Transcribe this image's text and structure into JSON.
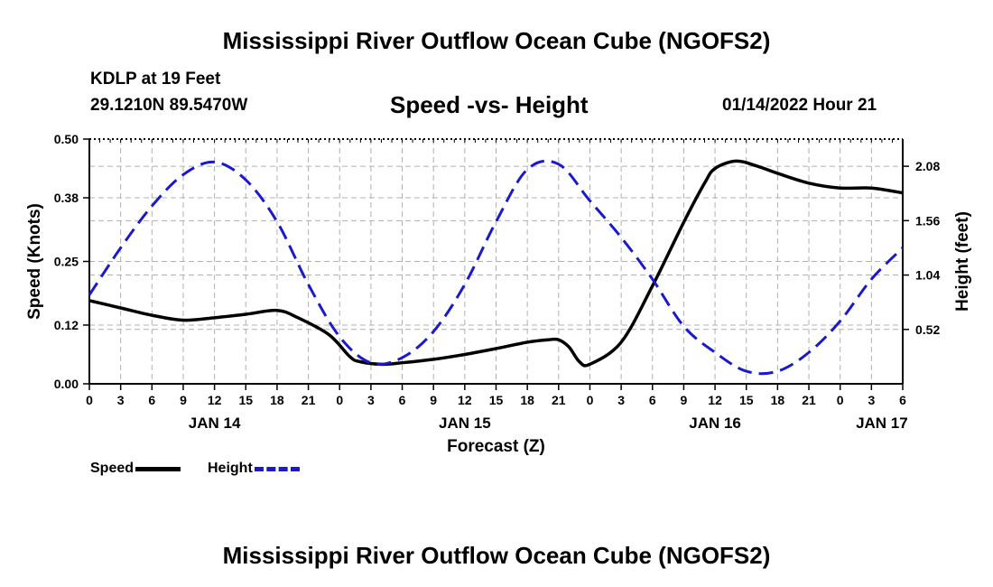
{
  "header": {
    "title": "Mississippi River Outflow Ocean Cube (NGOFS2)",
    "station": "KDLP at 19 Feet",
    "coords": "29.1210N  89.5470W",
    "subtitle": "Speed -vs- Height",
    "datetime": "01/14/2022 Hour 21"
  },
  "footer": {
    "title": "Mississippi River Outflow Ocean Cube (NGOFS2)"
  },
  "legend": {
    "speed_label": "Speed",
    "height_label": "Height"
  },
  "colors": {
    "speed": "#000000",
    "height": "#1a1acc",
    "grid": "#b0b0b0"
  },
  "chart_data": {
    "type": "line",
    "title": "Speed -vs- Height",
    "xlabel": "Forecast (Z)",
    "ylabel": "Speed (Knots)",
    "y2label": "Height (feet)",
    "xlim": [
      0,
      78
    ],
    "ylim": [
      0,
      0.5
    ],
    "y2lim": [
      0.0,
      2.34
    ],
    "x_ticks": [
      0,
      3,
      6,
      9,
      12,
      15,
      18,
      21,
      24,
      27,
      30,
      33,
      36,
      39,
      42,
      45,
      48,
      51,
      54,
      57,
      60,
      63,
      66,
      69,
      72,
      75,
      78
    ],
    "x_tick_labels": [
      "0",
      "3",
      "6",
      "9",
      "12",
      "15",
      "18",
      "21",
      "0",
      "3",
      "6",
      "9",
      "12",
      "15",
      "18",
      "21",
      "0",
      "3",
      "6",
      "9",
      "12",
      "15",
      "18",
      "21",
      "0",
      "3",
      "6"
    ],
    "day_labels": [
      {
        "x": 12,
        "label": "JAN 14"
      },
      {
        "x": 36,
        "label": "JAN 15"
      },
      {
        "x": 60,
        "label": "JAN 16"
      },
      {
        "x": 76,
        "label": "JAN 17"
      }
    ],
    "y_ticks": [
      0.0,
      0.12,
      0.25,
      0.38,
      0.5
    ],
    "y_tick_labels": [
      "0.00",
      "0.12",
      "0.25",
      "0.38",
      "0.50"
    ],
    "y2_ticks": [
      0.52,
      1.04,
      1.56,
      2.08
    ],
    "y2_tick_labels": [
      "0.52",
      "1.04",
      "1.56",
      "2.08"
    ],
    "grid": true,
    "series": [
      {
        "name": "Speed",
        "axis": "left",
        "style": "solid",
        "x": [
          0,
          3,
          6,
          9,
          12,
          15,
          18,
          20,
          23,
          25,
          26,
          28,
          30,
          33,
          36,
          39,
          42,
          44,
          45,
          46,
          47,
          48,
          51,
          54,
          57,
          59,
          60,
          62,
          64,
          66,
          69,
          72,
          75,
          78
        ],
        "values": [
          0.17,
          0.155,
          0.14,
          0.13,
          0.135,
          0.142,
          0.15,
          0.135,
          0.1,
          0.055,
          0.045,
          0.04,
          0.043,
          0.05,
          0.06,
          0.072,
          0.085,
          0.09,
          0.09,
          0.075,
          0.045,
          0.04,
          0.085,
          0.2,
          0.33,
          0.41,
          0.44,
          0.455,
          0.445,
          0.43,
          0.41,
          0.4,
          0.4,
          0.39
        ]
      },
      {
        "name": "Height",
        "axis": "right",
        "style": "dashed",
        "x": [
          0,
          3,
          6,
          9,
          12,
          15,
          18,
          21,
          24,
          27,
          30,
          33,
          36,
          39,
          42,
          45,
          48,
          51,
          54,
          57,
          60,
          63,
          66,
          69,
          72,
          75,
          78
        ],
        "values": [
          0.85,
          1.3,
          1.7,
          2.0,
          2.12,
          1.95,
          1.55,
          0.95,
          0.45,
          0.2,
          0.25,
          0.5,
          0.95,
          1.55,
          2.05,
          2.1,
          1.75,
          1.4,
          1.0,
          0.55,
          0.3,
          0.12,
          0.12,
          0.3,
          0.6,
          1.0,
          1.3
        ]
      }
    ]
  }
}
